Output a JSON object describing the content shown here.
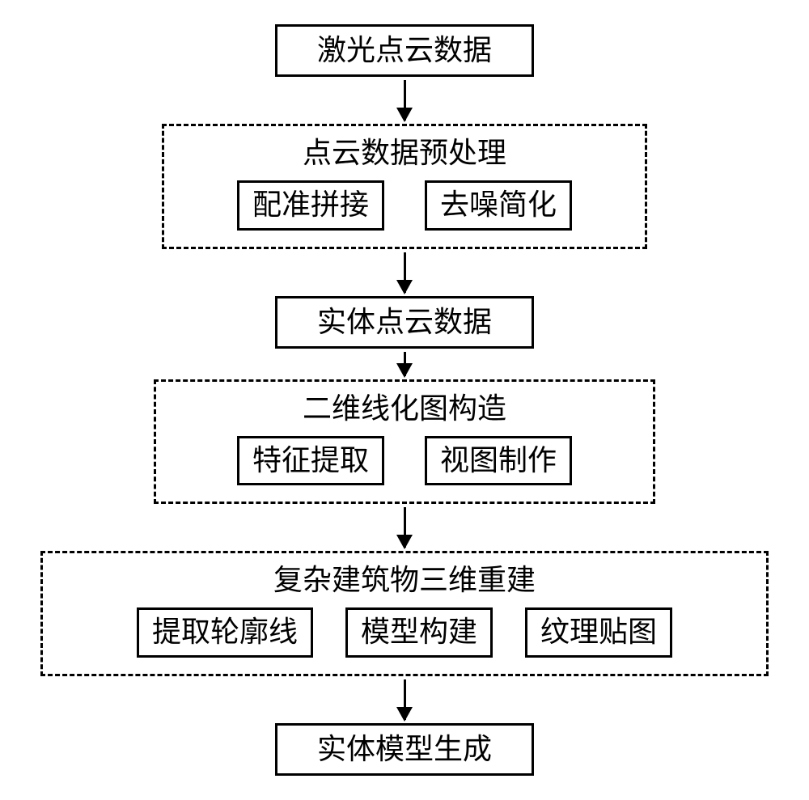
{
  "type": "flowchart",
  "direction": "top-down",
  "background_color": "#ffffff",
  "border_color": "#000000",
  "font_color": "#000000",
  "font_size": 36,
  "font_family": "SimSun",
  "solid_border_width": 3,
  "dashed_border_width": 3,
  "arrow_color": "#000000",
  "arrow_head_width": 20,
  "arrow_head_height": 18,
  "nodes": {
    "n1": {
      "label": "激光点云数据",
      "style": "solid"
    },
    "n2": {
      "label": "点云数据预处理",
      "style": "dashed",
      "children": {
        "n2a": {
          "label": "配准拼接",
          "style": "solid"
        },
        "n2b": {
          "label": "去噪简化",
          "style": "solid"
        }
      }
    },
    "n3": {
      "label": "实体点云数据",
      "style": "solid"
    },
    "n4": {
      "label": "二维线化图构造",
      "style": "dashed",
      "children": {
        "n4a": {
          "label": "特征提取",
          "style": "solid"
        },
        "n4b": {
          "label": "视图制作",
          "style": "solid"
        }
      }
    },
    "n5": {
      "label": "复杂建筑物三维重建",
      "style": "dashed",
      "children": {
        "n5a": {
          "label": "提取轮廓线",
          "style": "solid"
        },
        "n5b": {
          "label": "模型构建",
          "style": "solid"
        },
        "n5c": {
          "label": "纹理贴图",
          "style": "solid"
        }
      }
    },
    "n6": {
      "label": "实体模型生成",
      "style": "solid"
    }
  },
  "edges": [
    {
      "from": "n1",
      "to": "n2",
      "length": 50
    },
    {
      "from": "n2",
      "to": "n3",
      "length": 50
    },
    {
      "from": "n3",
      "to": "n4",
      "length": 30
    },
    {
      "from": "n4",
      "to": "n5",
      "length": 50
    },
    {
      "from": "n5",
      "to": "n6",
      "length": 50
    }
  ]
}
